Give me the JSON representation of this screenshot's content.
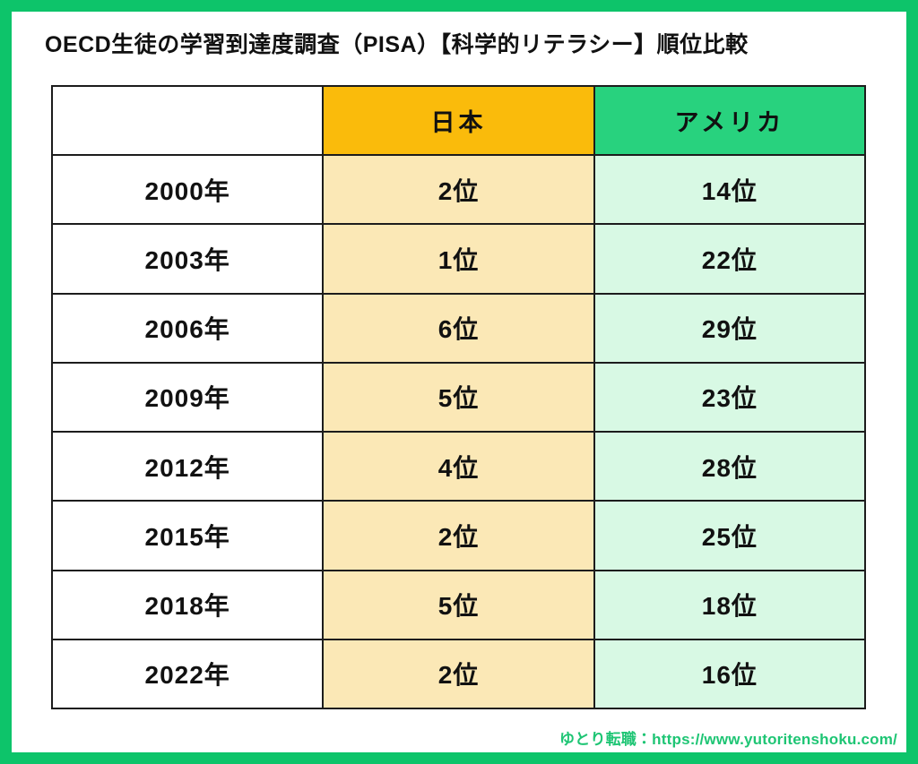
{
  "title": "OECD生徒の学習到達度調査（PISA）【科学的リテラシー】順位比較",
  "table": {
    "header": {
      "blank": "",
      "japan": "日本",
      "usa": "アメリカ"
    },
    "rows": [
      {
        "year": "2000年",
        "japan": "2位",
        "usa": "14位"
      },
      {
        "year": "2003年",
        "japan": "1位",
        "usa": "22位"
      },
      {
        "year": "2006年",
        "japan": "6位",
        "usa": "29位"
      },
      {
        "year": "2009年",
        "japan": "5位",
        "usa": "23位"
      },
      {
        "year": "2012年",
        "japan": "4位",
        "usa": "28位"
      },
      {
        "year": "2015年",
        "japan": "2位",
        "usa": "25位"
      },
      {
        "year": "2018年",
        "japan": "5位",
        "usa": "18位"
      },
      {
        "year": "2022年",
        "japan": "2位",
        "usa": "16位"
      }
    ]
  },
  "footer": {
    "credit": "ゆとり転職：https://www.yutoritenshoku.com/"
  },
  "chart_data": {
    "type": "table",
    "title": "OECD生徒の学習到達度調査（PISA）【科学的リテラシー】順位比較",
    "columns": [
      "年",
      "日本",
      "アメリカ"
    ],
    "categories": [
      "2000年",
      "2003年",
      "2006年",
      "2009年",
      "2012年",
      "2015年",
      "2018年",
      "2022年"
    ],
    "series": [
      {
        "name": "日本",
        "values": [
          2,
          1,
          6,
          5,
          4,
          2,
          5,
          2
        ]
      },
      {
        "name": "アメリカ",
        "values": [
          14,
          22,
          29,
          23,
          28,
          25,
          18,
          16
        ]
      }
    ],
    "unit": "位",
    "legend_position": "top",
    "grid": true
  },
  "colors": {
    "frame_green": "#0dc46a",
    "header_orange": "#fabb0b",
    "header_green": "#28d27e",
    "cell_orange": "#fbe8b6",
    "cell_green": "#d8f9e4",
    "table_border": "#1c1c1c",
    "footer_green": "#1ec574",
    "text_black": "#111111"
  }
}
